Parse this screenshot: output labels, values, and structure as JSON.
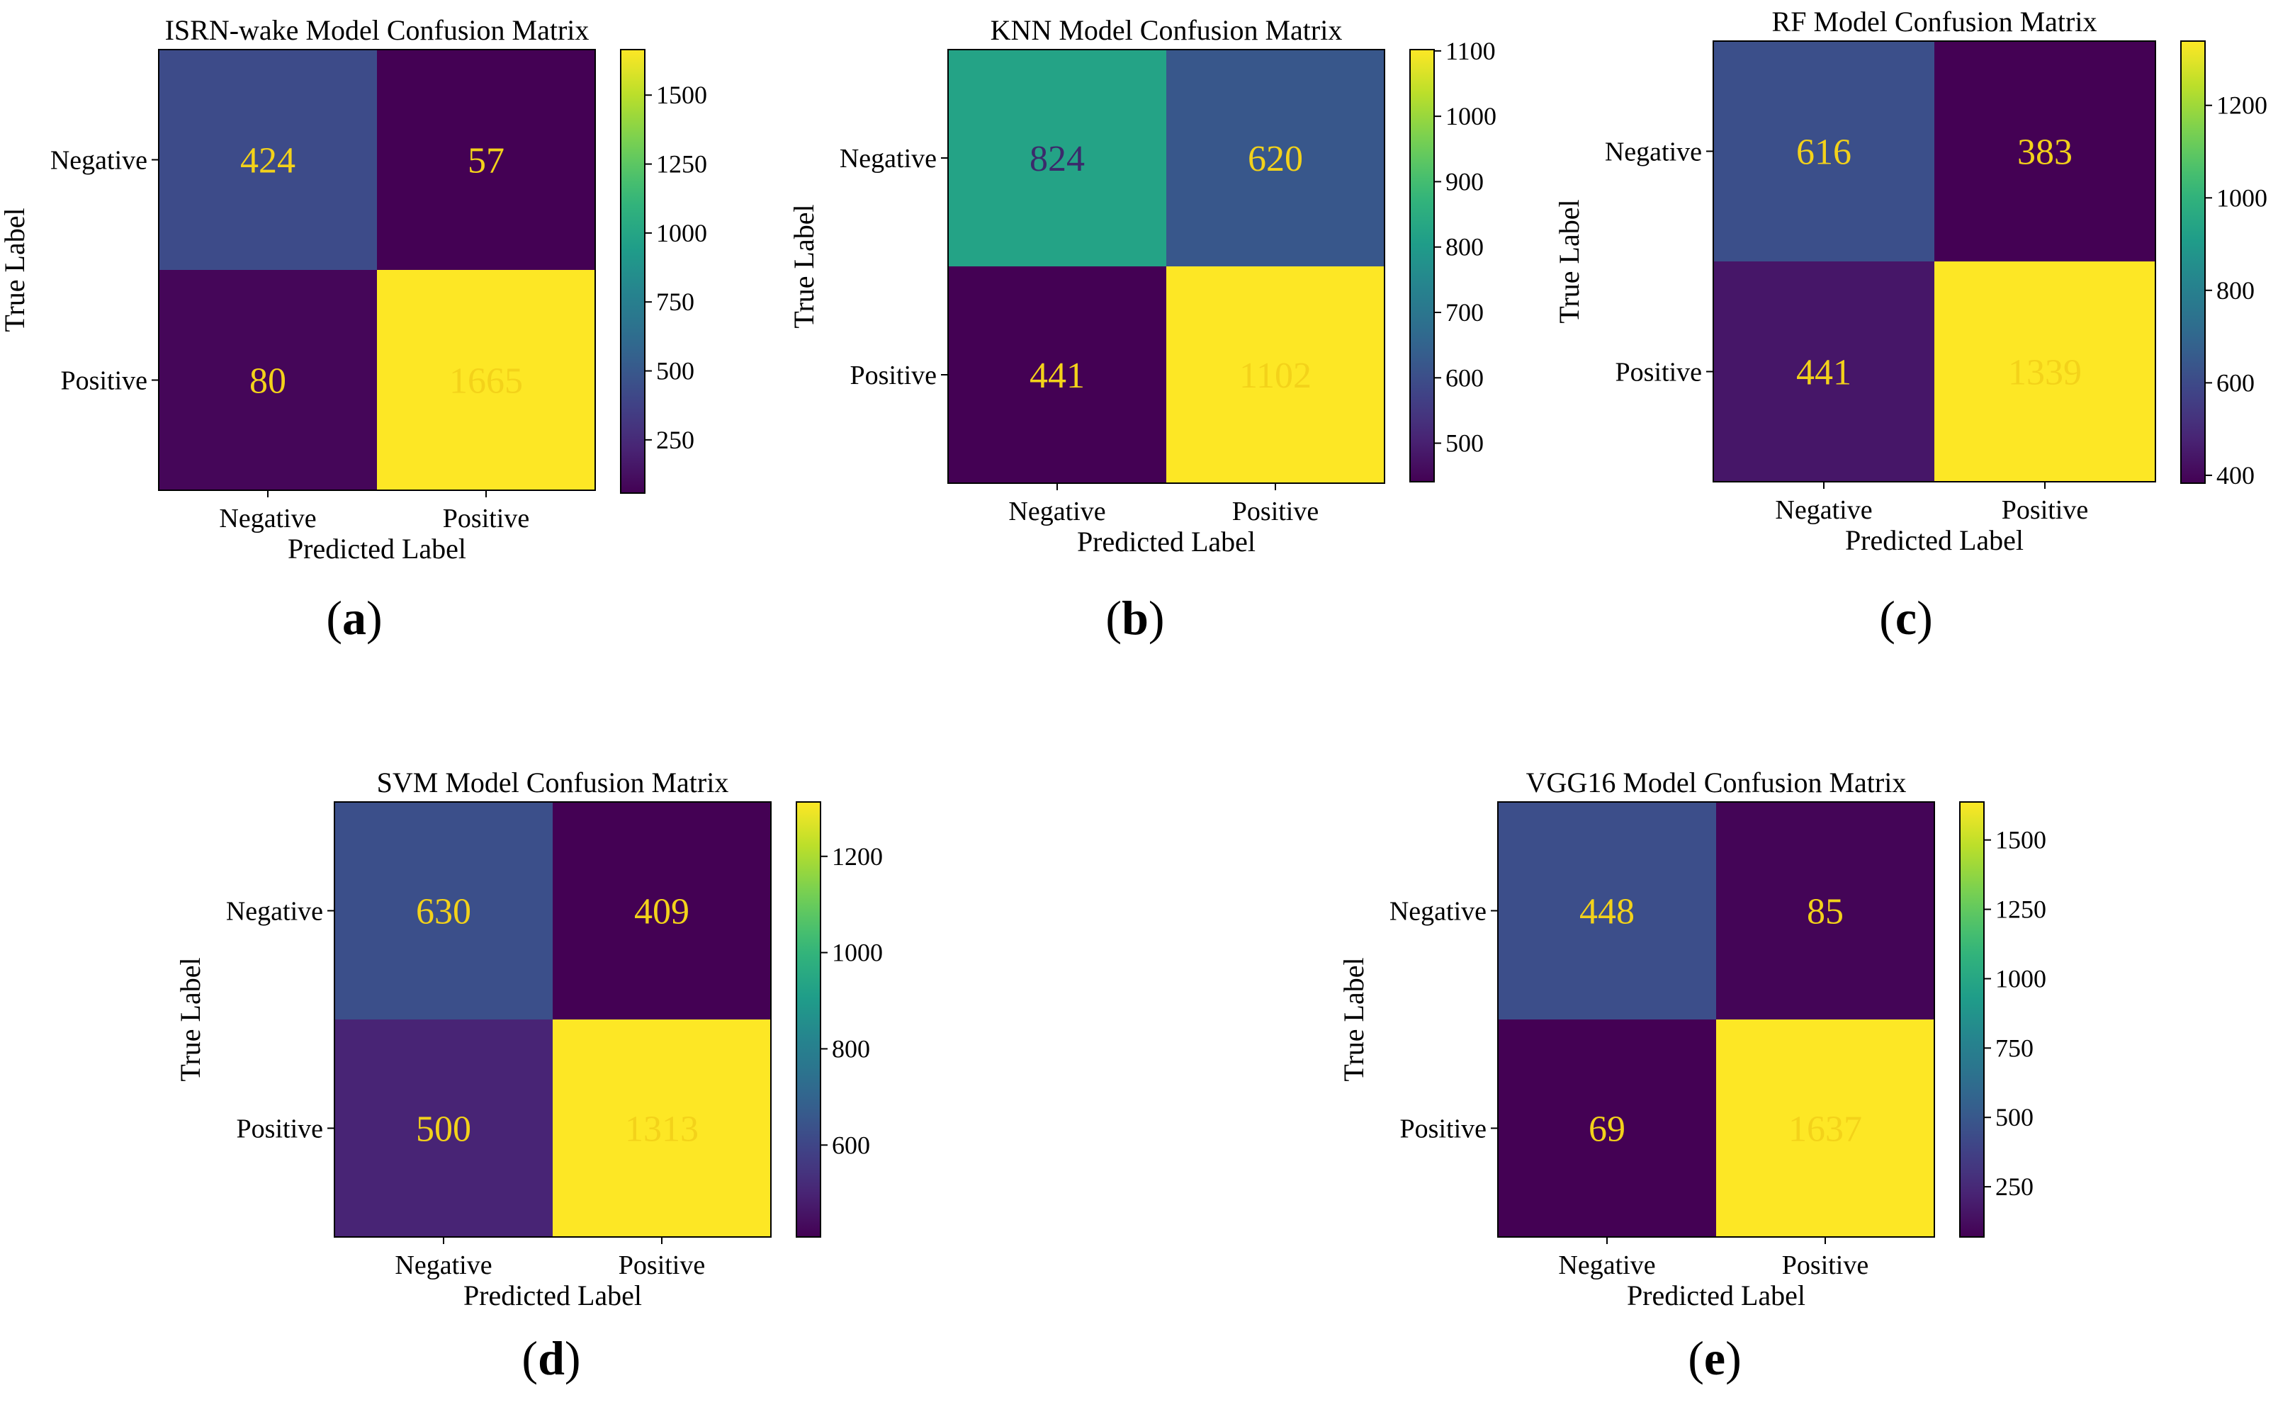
{
  "chart_data": [
    {
      "type": "heatmap",
      "title": "ISRN-wake Model Confusion Matrix",
      "xlabel": "Predicted Label",
      "ylabel": "True Label",
      "x_categories": [
        "Negative",
        "Positive"
      ],
      "y_categories": [
        "Negative",
        "Positive"
      ],
      "values": [
        [
          424,
          57
        ],
        [
          80,
          1665
        ]
      ],
      "colormap": "viridis",
      "colorbar": {
        "range": [
          57,
          1665
        ],
        "ticks": [
          250,
          500,
          750,
          1000,
          1250,
          1500
        ]
      },
      "panel_label": "a"
    },
    {
      "type": "heatmap",
      "title": "KNN Model Confusion Matrix",
      "xlabel": "Predicted Label",
      "ylabel": "True Label",
      "x_categories": [
        "Negative",
        "Positive"
      ],
      "y_categories": [
        "Negative",
        "Positive"
      ],
      "values": [
        [
          824,
          620
        ],
        [
          441,
          1102
        ]
      ],
      "colormap": "viridis",
      "colorbar": {
        "range": [
          441,
          1102
        ],
        "ticks": [
          500,
          600,
          700,
          800,
          900,
          1000,
          1100
        ]
      },
      "panel_label": "b"
    },
    {
      "type": "heatmap",
      "title": "RF Model Confusion Matrix",
      "xlabel": "Predicted Label",
      "ylabel": "True Label",
      "x_categories": [
        "Negative",
        "Positive"
      ],
      "y_categories": [
        "Negative",
        "Positive"
      ],
      "values": [
        [
          616,
          383
        ],
        [
          441,
          1339
        ]
      ],
      "colormap": "viridis",
      "colorbar": {
        "range": [
          383,
          1339
        ],
        "ticks": [
          400,
          600,
          800,
          1000,
          1200
        ]
      },
      "panel_label": "c"
    },
    {
      "type": "heatmap",
      "title": "SVM Model Confusion Matrix",
      "xlabel": "Predicted Label",
      "ylabel": "True Label",
      "x_categories": [
        "Negative",
        "Positive"
      ],
      "y_categories": [
        "Negative",
        "Positive"
      ],
      "values": [
        [
          630,
          409
        ],
        [
          500,
          1313
        ]
      ],
      "colormap": "viridis",
      "colorbar": {
        "range": [
          409,
          1313
        ],
        "ticks": [
          600,
          800,
          1000,
          1200
        ]
      },
      "panel_label": "d"
    },
    {
      "type": "heatmap",
      "title": "VGG16 Model Confusion Matrix",
      "xlabel": "Predicted Label",
      "ylabel": "True Label",
      "x_categories": [
        "Negative",
        "Positive"
      ],
      "y_categories": [
        "Negative",
        "Positive"
      ],
      "values": [
        [
          448,
          85
        ],
        [
          69,
          1637
        ]
      ],
      "colormap": "viridis",
      "colorbar": {
        "range": [
          69,
          1637
        ],
        "ticks": [
          250,
          500,
          750,
          1000,
          1250,
          1500
        ]
      },
      "panel_label": "e"
    }
  ],
  "colors": {
    "text_on_cell": "#f3d21a",
    "text_on_light_cell": "#3b2a6b",
    "viridis_stops": [
      "#440154",
      "#482878",
      "#3e4989",
      "#31688e",
      "#26828e",
      "#1f9e89",
      "#35b779",
      "#6ece58",
      "#b5de2b",
      "#fde725"
    ]
  }
}
